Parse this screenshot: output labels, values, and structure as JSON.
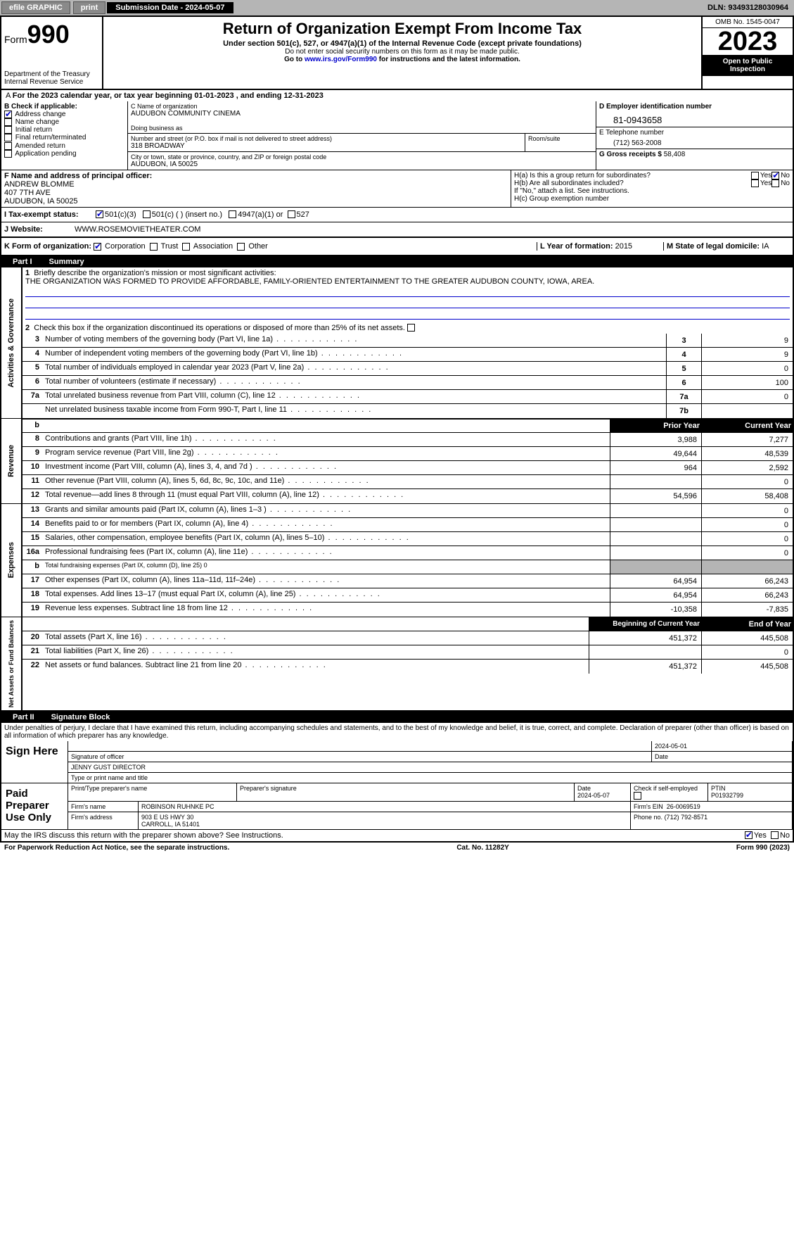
{
  "topbar": {
    "efile": "efile GRAPHIC",
    "print": "print",
    "submission_label": "Submission Date - 2024-05-07",
    "dln": "DLN: 93493128030964"
  },
  "header": {
    "form_prefix": "Form",
    "form_number": "990",
    "dept": "Department of the Treasury",
    "irs": "Internal Revenue Service",
    "title": "Return of Organization Exempt From Income Tax",
    "subtitle": "Under section 501(c), 527, or 4947(a)(1) of the Internal Revenue Code (except private foundations)",
    "note1": "Do not enter social security numbers on this form as it may be made public.",
    "note2_pre": "Go to ",
    "note2_link": "www.irs.gov/Form990",
    "note2_post": " for instructions and the latest information.",
    "omb": "OMB No. 1545-0047",
    "year": "2023",
    "open_public": "Open to Public Inspection"
  },
  "period": "For the 2023 calendar year, or tax year beginning 01-01-2023    , and ending 12-31-2023",
  "B": {
    "label": "B Check if applicable:",
    "items": [
      {
        "label": "Address change",
        "checked": true
      },
      {
        "label": "Name change",
        "checked": false
      },
      {
        "label": "Initial return",
        "checked": false
      },
      {
        "label": "Final return/terminated",
        "checked": false
      },
      {
        "label": "Amended return",
        "checked": false
      },
      {
        "label": "Application pending",
        "checked": false
      }
    ]
  },
  "C": {
    "name_label": "C Name of organization",
    "name": "AUDUBON COMMUNITY CINEMA",
    "dba_label": "Doing business as",
    "addr_label": "Number and street (or P.O. box if mail is not delivered to street address)",
    "room_label": "Room/suite",
    "addr": "318 BROADWAY",
    "city_label": "City or town, state or province, country, and ZIP or foreign postal code",
    "city": "AUDUBON, IA  50025"
  },
  "D": {
    "label": "D Employer identification number",
    "ein": "81-0943658"
  },
  "E": {
    "label": "E Telephone number",
    "phone": "(712) 563-2008"
  },
  "G": {
    "label": "G Gross receipts $",
    "amount": "58,408"
  },
  "F": {
    "label": "F  Name and address of principal officer:",
    "name": "ANDREW BLOMME",
    "addr1": "407 7TH AVE",
    "addr2": "AUDUBON, IA  50025"
  },
  "H": {
    "a_label": "H(a)  Is this a group return for subordinates?",
    "a_yes": "Yes",
    "a_no": "No",
    "b_label": "H(b)  Are all subordinates included?",
    "b_note": "If \"No,\" attach a list. See instructions.",
    "c_label": "H(c)  Group exemption number"
  },
  "I": {
    "label": "I    Tax-exempt status:",
    "opts": [
      "501(c)(3)",
      "501(c) (  ) (insert no.)",
      "4947(a)(1) or",
      "527"
    ]
  },
  "J": {
    "label": "J    Website:",
    "url": "WWW.ROSEMOVIETHEATER.COM"
  },
  "K": {
    "label": "K Form of organization:",
    "opts": [
      "Corporation",
      "Trust",
      "Association",
      "Other"
    ]
  },
  "L": {
    "label": "L Year of formation:",
    "val": "2015"
  },
  "M": {
    "label": "M State of legal domicile:",
    "val": "IA"
  },
  "part1": {
    "num": "Part I",
    "title": "Summary"
  },
  "sideLabels": {
    "ag": "Activities & Governance",
    "rev": "Revenue",
    "exp": "Expenses",
    "na": "Net Assets or Fund Balances"
  },
  "summary": {
    "l1_label": "Briefly describe the organization's mission or most significant activities:",
    "l1_text": "THE ORGANIZATION WAS FORMED TO PROVIDE AFFORDABLE, FAMILY-ORIENTED ENTERTAINMENT TO THE GREATER AUDUBON COUNTY, IOWA, AREA.",
    "l2": "Check this box          if the organization discontinued its operations or disposed of more than 25% of its net assets.",
    "lines_ag": [
      {
        "n": "3",
        "t": "Number of voting members of the governing body (Part VI, line 1a)",
        "c": "3",
        "v": "9"
      },
      {
        "n": "4",
        "t": "Number of independent voting members of the governing body (Part VI, line 1b)",
        "c": "4",
        "v": "9"
      },
      {
        "n": "5",
        "t": "Total number of individuals employed in calendar year 2023 (Part V, line 2a)",
        "c": "5",
        "v": "0"
      },
      {
        "n": "6",
        "t": "Total number of volunteers (estimate if necessary)",
        "c": "6",
        "v": "100"
      },
      {
        "n": "7a",
        "t": "Total unrelated business revenue from Part VIII, column (C), line 12",
        "c": "7a",
        "v": "0"
      },
      {
        "n": "",
        "t": "Net unrelated business taxable income from Form 990-T, Part I, line 11",
        "c": "7b",
        "v": ""
      }
    ],
    "col_prior": "Prior Year",
    "col_current": "Current Year",
    "lines_rev": [
      {
        "n": "8",
        "t": "Contributions and grants (Part VIII, line 1h)",
        "p": "3,988",
        "c": "7,277"
      },
      {
        "n": "9",
        "t": "Program service revenue (Part VIII, line 2g)",
        "p": "49,644",
        "c": "48,539"
      },
      {
        "n": "10",
        "t": "Investment income (Part VIII, column (A), lines 3, 4, and 7d )",
        "p": "964",
        "c": "2,592"
      },
      {
        "n": "11",
        "t": "Other revenue (Part VIII, column (A), lines 5, 6d, 8c, 9c, 10c, and 11e)",
        "p": "",
        "c": "0"
      },
      {
        "n": "12",
        "t": "Total revenue—add lines 8 through 11 (must equal Part VIII, column (A), line 12)",
        "p": "54,596",
        "c": "58,408"
      }
    ],
    "lines_exp": [
      {
        "n": "13",
        "t": "Grants and similar amounts paid (Part IX, column (A), lines 1–3 )",
        "p": "",
        "c": "0"
      },
      {
        "n": "14",
        "t": "Benefits paid to or for members (Part IX, column (A), line 4)",
        "p": "",
        "c": "0"
      },
      {
        "n": "15",
        "t": "Salaries, other compensation, employee benefits (Part IX, column (A), lines 5–10)",
        "p": "",
        "c": "0"
      },
      {
        "n": "16a",
        "t": "Professional fundraising fees (Part IX, column (A), line 11e)",
        "p": "",
        "c": "0"
      },
      {
        "n": "b",
        "t": "Total fundraising expenses (Part IX, column (D), line 25) 0",
        "p": "grey",
        "c": "grey"
      },
      {
        "n": "17",
        "t": "Other expenses (Part IX, column (A), lines 11a–11d, 11f–24e)",
        "p": "64,954",
        "c": "66,243"
      },
      {
        "n": "18",
        "t": "Total expenses. Add lines 13–17 (must equal Part IX, column (A), line 25)",
        "p": "64,954",
        "c": "66,243"
      },
      {
        "n": "19",
        "t": "Revenue less expenses. Subtract line 18 from line 12",
        "p": "-10,358",
        "c": "-7,835"
      }
    ],
    "col_begin": "Beginning of Current Year",
    "col_end": "End of Year",
    "lines_na": [
      {
        "n": "20",
        "t": "Total assets (Part X, line 16)",
        "p": "451,372",
        "c": "445,508"
      },
      {
        "n": "21",
        "t": "Total liabilities (Part X, line 26)",
        "p": "",
        "c": "0"
      },
      {
        "n": "22",
        "t": "Net assets or fund balances. Subtract line 21 from line 20",
        "p": "451,372",
        "c": "445,508"
      }
    ]
  },
  "part2": {
    "num": "Part II",
    "title": "Signature Block"
  },
  "penalties": "Under penalties of perjury, I declare that I have examined this return, including accompanying schedules and statements, and to the best of my knowledge and belief, it is true, correct, and complete. Declaration of preparer (other than officer) is based on all information of which preparer has any knowledge.",
  "sign": {
    "here": "Sign Here",
    "sig_officer": "Signature of officer",
    "officer_name": "JENNY GUST  DIRECTOR",
    "name_title": "Type or print name and title",
    "date_label": "Date",
    "date": "2024-05-01"
  },
  "paid": {
    "title": "Paid Preparer Use Only",
    "print_name": "Print/Type preparer's name",
    "sig": "Preparer's signature",
    "date": "2024-05-07",
    "check_se": "Check          if self-employed",
    "ptin_label": "PTIN",
    "ptin": "P01932799",
    "firm_name_label": "Firm's name",
    "firm_name": "ROBINSON RUHNKE PC",
    "firm_ein_label": "Firm's EIN",
    "firm_ein": "26-0069519",
    "firm_addr_label": "Firm's address",
    "firm_addr1": "903 E US HWY 30",
    "firm_addr2": "CARROLL, IA  51401",
    "phone_label": "Phone no.",
    "phone": "(712) 792-8571"
  },
  "discuss": "May the IRS discuss this return with the preparer shown above? See Instructions.",
  "footer": {
    "pra": "For Paperwork Reduction Act Notice, see the separate instructions.",
    "cat": "Cat. No. 11282Y",
    "form": "Form 990 (2023)"
  }
}
